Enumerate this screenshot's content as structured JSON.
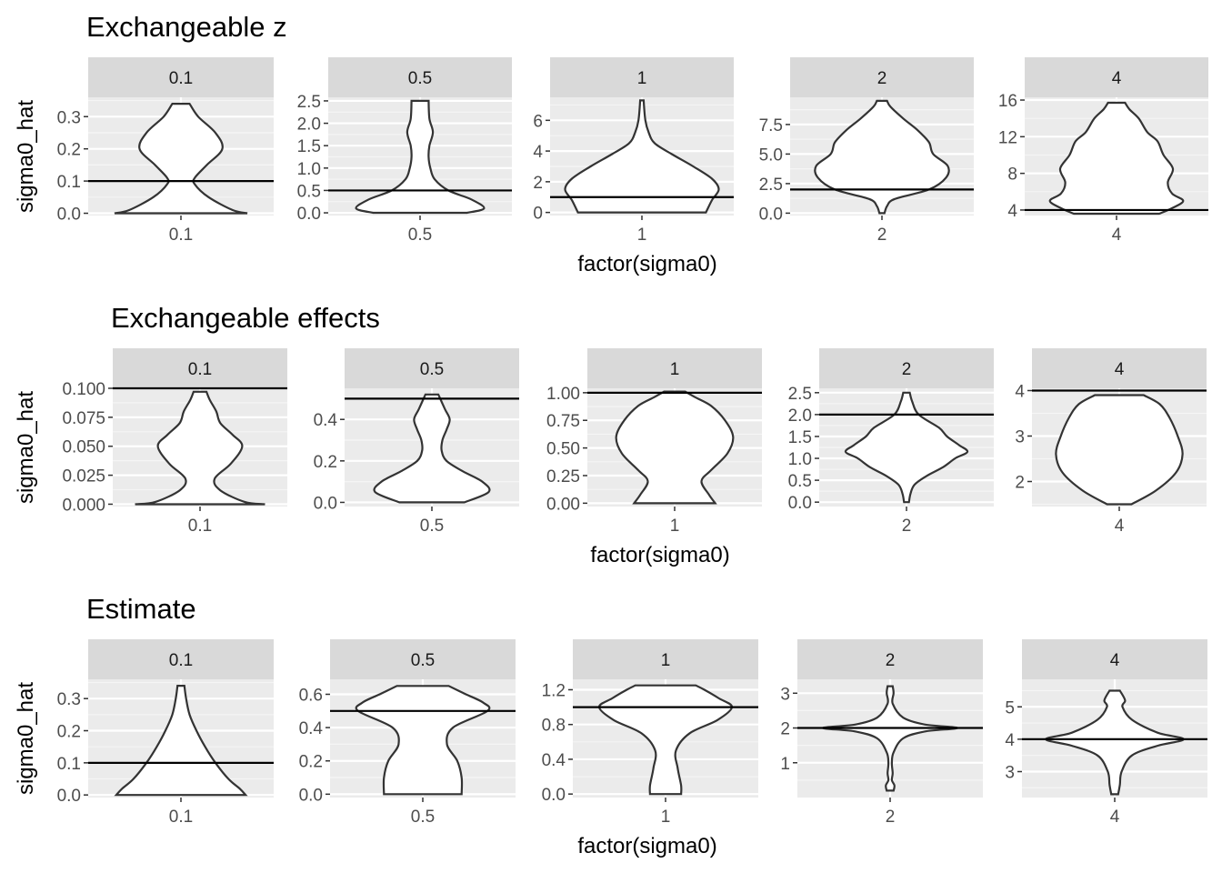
{
  "chart_data": [
    {
      "type": "violin",
      "title": "Exchangeable z",
      "xlabel": "factor(sigma0)",
      "ylabel": "sigma0_hat",
      "panels": [
        {
          "strip": "0.1",
          "category": "0.1",
          "ylim": [
            -0.007,
            0.36
          ],
          "yticks": [
            0.0,
            0.1,
            0.2,
            0.3
          ],
          "ytick_labels": [
            "0.0",
            "0.1",
            "0.2",
            "0.3"
          ],
          "hline": 0.1,
          "violin": {
            "y": [
              0.0,
              0.01,
              0.05,
              0.09,
              0.11,
              0.15,
              0.2,
              0.25,
              0.3,
              0.34
            ],
            "width": [
              0.77,
              0.6,
              0.32,
              0.16,
              0.16,
              0.3,
              0.48,
              0.4,
              0.2,
              0.1
            ]
          }
        },
        {
          "strip": "0.5",
          "category": "0.5",
          "ylim": [
            -0.06,
            2.58
          ],
          "yticks": [
            0.0,
            0.5,
            1.0,
            1.5,
            2.0,
            2.5
          ],
          "ytick_labels": [
            "0.0",
            "0.5",
            "1.0",
            "1.5",
            "2.0",
            "2.5"
          ],
          "hline": 0.5,
          "violin": {
            "y": [
              0.0,
              0.1,
              0.3,
              0.5,
              0.75,
              1.0,
              1.25,
              1.5,
              1.8,
              2.1,
              2.5
            ],
            "width": [
              0.55,
              0.75,
              0.6,
              0.33,
              0.17,
              0.12,
              0.1,
              0.11,
              0.15,
              0.11,
              0.1
            ]
          }
        },
        {
          "strip": "1",
          "category": "1",
          "ylim": [
            -0.2,
            7.5
          ],
          "yticks": [
            0,
            2,
            4,
            6
          ],
          "ytick_labels": [
            "0",
            "2",
            "4",
            "6"
          ],
          "hline": 1,
          "violin": {
            "y": [
              0.0,
              0.8,
              1.5,
              2.2,
              3.0,
              3.8,
              4.5,
              5.2,
              6.0,
              7.3
            ],
            "width": [
              0.75,
              0.82,
              0.9,
              0.82,
              0.6,
              0.35,
              0.15,
              0.08,
              0.04,
              0.02
            ]
          }
        },
        {
          "strip": "2",
          "category": "2",
          "ylim": [
            -0.2,
            9.8
          ],
          "yticks": [
            0.0,
            2.5,
            5.0,
            7.5
          ],
          "ytick_labels": [
            "0.0",
            "2.5",
            "5.0",
            "7.5"
          ],
          "hline": 2,
          "violin": {
            "y": [
              0.0,
              0.6,
              1.2,
              2.0,
              3.0,
              4.0,
              5.0,
              6.0,
              7.0,
              8.0,
              9.0,
              9.5
            ],
            "width": [
              0.03,
              0.06,
              0.15,
              0.55,
              0.75,
              0.77,
              0.6,
              0.55,
              0.42,
              0.25,
              0.1,
              0.06
            ]
          }
        },
        {
          "strip": "4",
          "category": "4",
          "ylim": [
            3.4,
            16.3
          ],
          "yticks": [
            4,
            8,
            12,
            16
          ],
          "ytick_labels": [
            "4",
            "8",
            "12",
            "16"
          ],
          "hline": 4,
          "violin": {
            "y": [
              3.6,
              4.2,
              5.0,
              5.8,
              7.0,
              8.5,
              10.0,
              11.5,
              12.5,
              14.0,
              15.0,
              15.7
            ],
            "width": [
              0.5,
              0.65,
              0.78,
              0.65,
              0.6,
              0.66,
              0.55,
              0.48,
              0.36,
              0.26,
              0.15,
              0.1
            ]
          }
        }
      ]
    },
    {
      "type": "violin",
      "title": "Exchangeable effects",
      "xlabel": "factor(sigma0)",
      "ylabel": "sigma0_hat",
      "panels": [
        {
          "strip": "0.1",
          "category": "0.1",
          "ylim": [
            -0.002,
            0.1
          ],
          "yticks": [
            0.0,
            0.025,
            0.05,
            0.075,
            0.1
          ],
          "ytick_labels": [
            "0.000",
            "0.025",
            "0.050",
            "0.075",
            "0.100"
          ],
          "hline": 0.1,
          "violin": {
            "y": [
              0.0,
              0.002,
              0.012,
              0.022,
              0.035,
              0.05,
              0.06,
              0.07,
              0.08,
              0.09,
              0.097
            ],
            "width": [
              0.8,
              0.55,
              0.25,
              0.18,
              0.38,
              0.52,
              0.4,
              0.25,
              0.2,
              0.12,
              0.08
            ]
          }
        },
        {
          "strip": "0.5",
          "category": "0.5",
          "ylim": [
            -0.02,
            0.55
          ],
          "yticks": [
            0.0,
            0.2,
            0.4
          ],
          "ytick_labels": [
            "0.0",
            "0.2",
            "0.4"
          ],
          "hline": 0.5,
          "violin": {
            "y": [
              0.0,
              0.05,
              0.1,
              0.15,
              0.2,
              0.25,
              0.3,
              0.35,
              0.4,
              0.45,
              0.52
            ],
            "width": [
              0.4,
              0.7,
              0.62,
              0.38,
              0.18,
              0.12,
              0.13,
              0.18,
              0.22,
              0.16,
              0.08
            ]
          }
        },
        {
          "strip": "1",
          "category": "1",
          "ylim": [
            -0.03,
            1.04
          ],
          "yticks": [
            0.0,
            0.25,
            0.5,
            0.75,
            1.0
          ],
          "ytick_labels": [
            "0.00",
            "0.25",
            "0.50",
            "0.75",
            "1.00"
          ],
          "hline": 1.0,
          "violin": {
            "y": [
              0.0,
              0.08,
              0.2,
              0.3,
              0.45,
              0.6,
              0.75,
              0.88,
              0.96,
              1.01
            ],
            "width": [
              0.5,
              0.42,
              0.33,
              0.45,
              0.65,
              0.72,
              0.62,
              0.45,
              0.25,
              0.13
            ]
          }
        },
        {
          "strip": "2",
          "category": "2",
          "ylim": [
            -0.1,
            2.6
          ],
          "yticks": [
            0.0,
            0.5,
            1.0,
            1.5,
            2.0,
            2.5
          ],
          "ytick_labels": [
            "0.0",
            "0.5",
            "1.0",
            "1.5",
            "2.0",
            "2.5"
          ],
          "hline": 2.0,
          "violin": {
            "y": [
              0.0,
              0.2,
              0.4,
              0.6,
              0.8,
              1.0,
              1.15,
              1.3,
              1.5,
              1.7,
              2.0,
              2.3,
              2.5
            ],
            "width": [
              0.03,
              0.05,
              0.1,
              0.25,
              0.45,
              0.6,
              0.75,
              0.65,
              0.5,
              0.4,
              0.15,
              0.07,
              0.04
            ]
          }
        },
        {
          "strip": "4",
          "category": "4",
          "ylim": [
            1.45,
            4.05
          ],
          "yticks": [
            2,
            3,
            4
          ],
          "ytick_labels": [
            "2",
            "3",
            "4"
          ],
          "hline": 4,
          "violin": {
            "y": [
              1.5,
              1.8,
              2.2,
              2.6,
              3.0,
              3.4,
              3.7,
              3.9
            ],
            "width": [
              0.15,
              0.45,
              0.7,
              0.78,
              0.72,
              0.62,
              0.5,
              0.3
            ]
          }
        }
      ]
    },
    {
      "type": "violin",
      "title": "Estimate",
      "xlabel": "factor(sigma0)",
      "ylabel": "sigma0_hat",
      "panels": [
        {
          "strip": "0.1",
          "category": "0.1",
          "ylim": [
            -0.008,
            0.36
          ],
          "yticks": [
            0.0,
            0.1,
            0.2,
            0.3
          ],
          "ytick_labels": [
            "0.0",
            "0.1",
            "0.2",
            "0.3"
          ],
          "hline": 0.1,
          "violin": {
            "y": [
              0.0,
              0.02,
              0.05,
              0.1,
              0.15,
              0.2,
              0.25,
              0.3,
              0.34
            ],
            "width": [
              0.75,
              0.68,
              0.55,
              0.4,
              0.28,
              0.18,
              0.1,
              0.06,
              0.04
            ]
          }
        },
        {
          "strip": "0.5",
          "category": "0.5",
          "ylim": [
            -0.02,
            0.69
          ],
          "yticks": [
            0.0,
            0.2,
            0.4,
            0.6
          ],
          "ytick_labels": [
            "0.0",
            "0.2",
            "0.4",
            "0.6"
          ],
          "hline": 0.5,
          "violin": {
            "y": [
              0.0,
              0.1,
              0.2,
              0.3,
              0.4,
              0.5,
              0.55,
              0.6,
              0.65
            ],
            "width": [
              0.45,
              0.45,
              0.4,
              0.28,
              0.35,
              0.75,
              0.7,
              0.5,
              0.3
            ]
          }
        },
        {
          "strip": "1",
          "category": "1",
          "ylim": [
            -0.04,
            1.32
          ],
          "yticks": [
            0.0,
            0.4,
            0.8,
            1.2
          ],
          "ytick_labels": [
            "0.0",
            "0.4",
            "0.8",
            "1.2"
          ],
          "hline": 1.0,
          "violin": {
            "y": [
              0.0,
              0.1,
              0.3,
              0.5,
              0.7,
              0.85,
              1.0,
              1.1,
              1.2,
              1.25
            ],
            "width": [
              0.18,
              0.18,
              0.14,
              0.12,
              0.28,
              0.6,
              0.77,
              0.62,
              0.45,
              0.35
            ]
          }
        },
        {
          "strip": "2",
          "category": "2",
          "ylim": [
            0.0,
            3.4
          ],
          "yticks": [
            1,
            2,
            3
          ],
          "ytick_labels": [
            "1",
            "2",
            "3"
          ],
          "hline": 2,
          "violin": {
            "y": [
              0.2,
              0.35,
              0.5,
              0.7,
              1.0,
              1.3,
              1.7,
              1.9,
              2.0,
              2.1,
              2.3,
              2.7,
              3.0,
              3.2
            ],
            "width": [
              0.04,
              0.05,
              0.02,
              0.03,
              0.02,
              0.04,
              0.15,
              0.4,
              0.78,
              0.4,
              0.15,
              0.03,
              0.04,
              0.03
            ]
          }
        },
        {
          "strip": "4",
          "category": "4",
          "ylim": [
            2.2,
            5.85
          ],
          "yticks": [
            3,
            4,
            5
          ],
          "ytick_labels": [
            "3",
            "4",
            "5"
          ],
          "hline": 4,
          "violin": {
            "y": [
              2.3,
              2.6,
              3.0,
              3.5,
              3.8,
              4.0,
              4.2,
              4.6,
              5.0,
              5.2,
              5.5
            ],
            "width": [
              0.04,
              0.06,
              0.08,
              0.2,
              0.5,
              0.8,
              0.5,
              0.2,
              0.09,
              0.12,
              0.06
            ]
          }
        }
      ]
    }
  ]
}
